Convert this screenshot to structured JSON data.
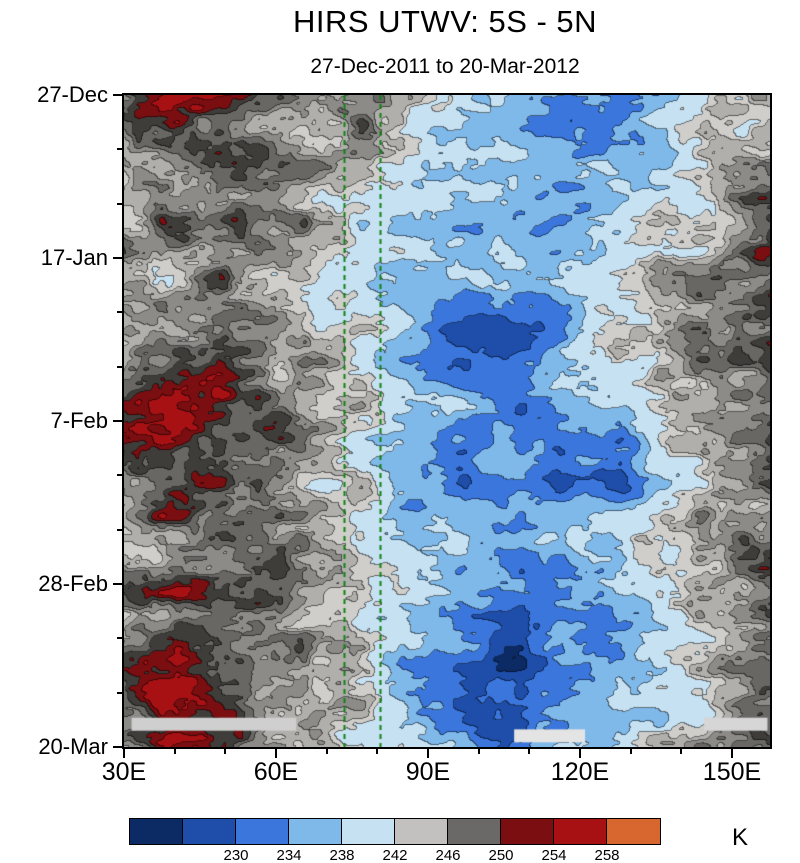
{
  "chart_data": {
    "type": "heatmap",
    "title": "HIRS UTWV: 5S - 5N",
    "subtitle": "27-Dec-2011 to 20-Mar-2012",
    "value_unit": "K",
    "x_range": [
      30,
      157.5
    ],
    "x_ticks": {
      "values": [
        30,
        60,
        90,
        120,
        150
      ],
      "labels": [
        "30E",
        "60E",
        "90E",
        "120E",
        "150E"
      ],
      "minor_step": 10
    },
    "y_range_days": [
      0,
      84
    ],
    "y_ticks": {
      "labels": [
        "27-Dec",
        "17-Jan",
        "7-Feb",
        "28-Feb",
        "20-Mar"
      ],
      "days": [
        0,
        21,
        42,
        63,
        84
      ],
      "minor_step": 7
    },
    "levels": [
      226,
      230,
      234,
      238,
      242,
      244,
      246,
      248,
      250,
      252,
      254,
      258
    ],
    "palette": [
      "#0c2a63",
      "#1e4ea9",
      "#3b76dd",
      "#7fb9ea",
      "#c6e1f2",
      "#cfcecb",
      "#b0afac",
      "#8c8b88",
      "#686764",
      "#3e3d3a",
      "#7a0e11",
      "#a81114",
      "#d8672f"
    ],
    "colorbar": {
      "cells": [
        "#0c2a63",
        "#1e4ea9",
        "#3b76dd",
        "#7fb9ea",
        "#c6e1f2",
        "#c2c1bf",
        "#6a6967",
        "#7a0e11",
        "#a81114",
        "#d8672f"
      ],
      "boundary_labels": [
        "230",
        "234",
        "238",
        "242",
        "246",
        "250",
        "254",
        "258"
      ],
      "label_start_boundary": 2,
      "unit": "K"
    },
    "dashed_lines_lon": [
      73.5,
      80.5
    ],
    "dashed_line_color": "#0f8210",
    "grid": {
      "lons": [
        30,
        40,
        50,
        60,
        70,
        80,
        90,
        100,
        110,
        120,
        130,
        140,
        150,
        157.5
      ],
      "row_days": [
        0,
        5,
        10,
        15,
        20,
        25,
        30,
        35,
        40,
        45,
        50,
        55,
        60,
        65,
        70,
        75,
        80,
        85
      ],
      "values": [
        [
          251,
          257,
          253,
          248,
          246,
          248,
          243,
          239,
          236,
          233,
          232,
          238,
          244,
          247
        ],
        [
          248,
          251,
          249,
          246,
          244,
          246,
          241,
          238,
          235,
          231,
          234,
          240,
          244,
          246
        ],
        [
          246,
          248,
          250,
          248,
          245,
          243,
          240,
          238,
          236,
          235,
          238,
          241,
          245,
          248
        ],
        [
          247,
          249,
          251,
          249,
          246,
          241,
          239,
          240,
          238,
          236,
          239,
          242,
          246,
          249
        ],
        [
          245,
          247,
          249,
          247,
          244,
          240,
          238,
          236,
          235,
          238,
          240,
          244,
          247,
          250
        ],
        [
          244,
          246,
          248,
          246,
          242,
          239,
          236,
          233,
          235,
          239,
          242,
          245,
          248,
          250
        ],
        [
          246,
          248,
          249,
          247,
          243,
          240,
          234,
          228,
          230,
          236,
          240,
          244,
          247,
          249
        ],
        [
          248,
          250,
          251,
          248,
          244,
          241,
          235,
          229,
          232,
          237,
          241,
          245,
          248,
          250
        ],
        [
          253,
          257,
          253,
          249,
          246,
          243,
          239,
          236,
          234,
          238,
          242,
          246,
          249,
          251
        ],
        [
          251,
          254,
          251,
          248,
          245,
          242,
          238,
          235,
          233,
          235,
          230,
          243,
          247,
          250
        ],
        [
          249,
          251,
          250,
          247,
          244,
          241,
          237,
          234,
          236,
          232,
          228,
          240,
          245,
          248
        ],
        [
          248,
          250,
          249,
          246,
          243,
          240,
          238,
          236,
          234,
          236,
          238,
          242,
          246,
          249
        ],
        [
          247,
          249,
          250,
          248,
          245,
          242,
          239,
          237,
          235,
          237,
          240,
          243,
          247,
          250
        ],
        [
          248,
          250,
          251,
          249,
          246,
          243,
          240,
          236,
          233,
          235,
          238,
          242,
          246,
          249
        ],
        [
          249,
          251,
          250,
          248,
          245,
          241,
          237,
          232,
          230,
          234,
          237,
          241,
          245,
          248
        ],
        [
          252,
          255,
          252,
          249,
          246,
          242,
          236,
          230,
          228,
          233,
          237,
          241,
          245,
          248
        ],
        [
          250,
          256,
          253,
          249,
          246,
          241,
          235,
          231,
          229,
          234,
          238,
          242,
          246,
          249
        ],
        [
          249,
          253,
          251,
          248,
          245,
          242,
          237,
          233,
          231,
          235,
          239,
          243,
          246,
          249
        ]
      ]
    },
    "data_gaps": [
      {
        "lon": [
          31.5,
          64
        ],
        "day": 81,
        "color": "#cfcfcf"
      },
      {
        "lon": [
          107,
          121
        ],
        "day": 82.5,
        "color": "#e4e4e4"
      },
      {
        "lon": [
          144.5,
          157
        ],
        "day": 81,
        "color": "#d6d6d6"
      }
    ]
  }
}
